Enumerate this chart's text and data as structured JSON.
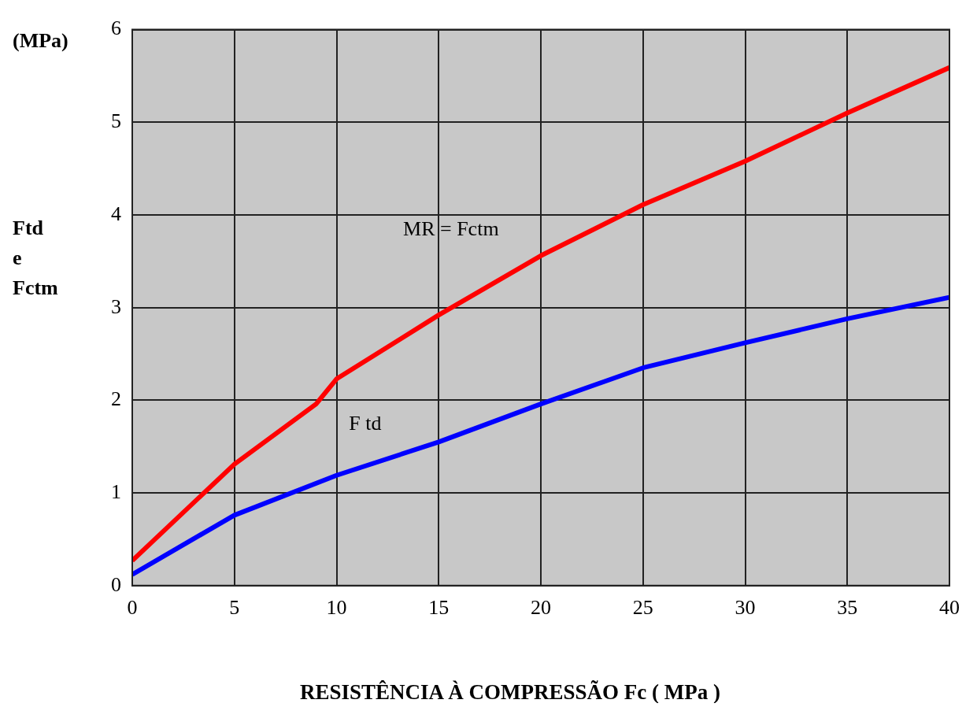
{
  "chart_data": {
    "type": "line",
    "xlabel": "RESISTÊNCIA À COMPRESSÃO Fc ( MPa )",
    "ylabel": "Ftd e Fctm",
    "xlim": [
      0,
      40
    ],
    "xticks": [
      0,
      5,
      10,
      15,
      20,
      25,
      30,
      35,
      40
    ],
    "ylim": [
      0,
      6
    ],
    "yticks": [
      0,
      1,
      2,
      3,
      4,
      5,
      6
    ],
    "grid": true,
    "legend": false,
    "marker": "none",
    "line_style": "solid",
    "series": [
      {
        "color": "#ff0000",
        "x": [
          0,
          5,
          9,
          10,
          15,
          20,
          25,
          30,
          35,
          40
        ],
        "values": [
          0.27,
          1.31,
          1.96,
          2.23,
          2.92,
          3.56,
          4.11,
          4.58,
          5.1,
          5.59
        ]
      },
      {
        "color": "#0000ff",
        "x": [
          0,
          5,
          10,
          15,
          20,
          25,
          30,
          35,
          40
        ],
        "values": [
          0.12,
          0.76,
          1.19,
          1.55,
          1.96,
          2.35,
          2.62,
          2.88,
          3.11
        ]
      }
    ],
    "annotations": [
      "(MPa)",
      "MR = Fctm",
      "F td"
    ]
  }
}
